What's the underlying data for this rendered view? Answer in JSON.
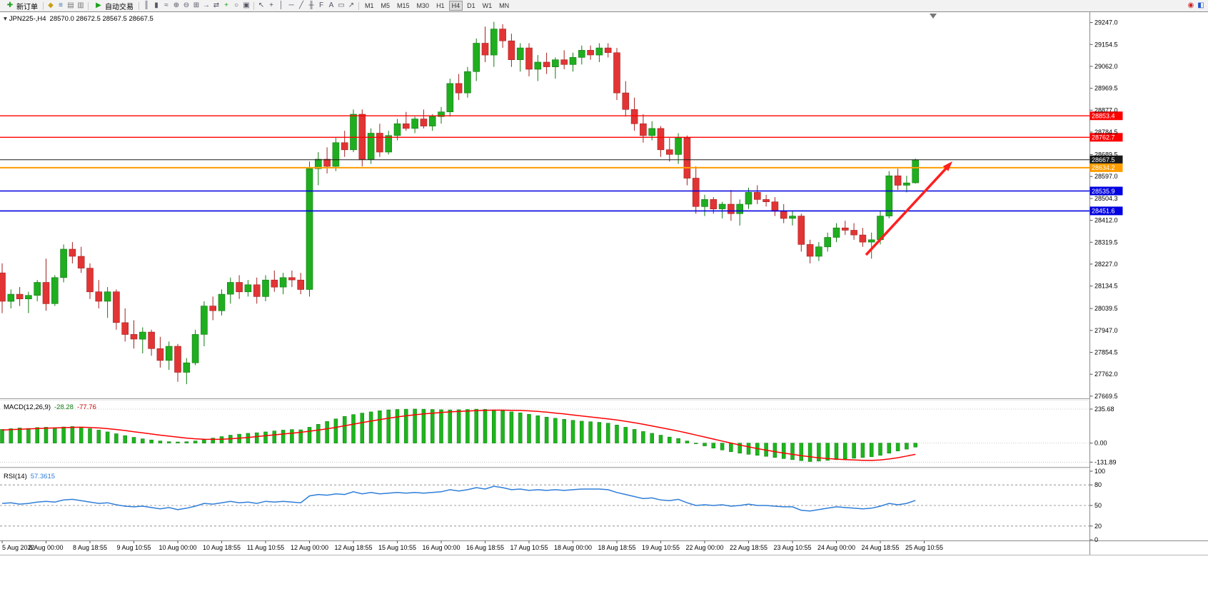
{
  "toolbar": {
    "new_order": "新订单",
    "auto_trading": "自动交易",
    "icons_left": [
      {
        "name": "profiles-icon",
        "glyph": "◆",
        "color": "#c99d12"
      },
      {
        "name": "market-watch-icon",
        "glyph": "≡",
        "color": "#3a6ea5"
      },
      {
        "name": "navigator-icon",
        "glyph": "▤",
        "color": "#777777"
      },
      {
        "name": "terminal-icon",
        "glyph": "▥",
        "color": "#777777"
      }
    ],
    "chart_icons": [
      {
        "name": "bar-chart-icon",
        "glyph": "║"
      },
      {
        "name": "candlestick-chart-icon",
        "glyph": "▮"
      },
      {
        "name": "line-chart-icon",
        "glyph": "≈"
      },
      {
        "name": "zoom-in-icon",
        "glyph": "⊕"
      },
      {
        "name": "zoom-out-icon",
        "glyph": "⊖"
      },
      {
        "name": "tile-windows-icon",
        "glyph": "⊞"
      },
      {
        "name": "auto-scroll-icon",
        "glyph": "→"
      },
      {
        "name": "chart-shift-icon",
        "glyph": "⇄"
      },
      {
        "name": "indicators-icon",
        "glyph": "+",
        "color": "#18a018"
      },
      {
        "name": "periods-icon",
        "glyph": "○"
      },
      {
        "name": "templates-icon",
        "glyph": "▣"
      }
    ],
    "draw_icons": [
      {
        "name": "cursor-icon",
        "glyph": "↖"
      },
      {
        "name": "crosshair-icon",
        "glyph": "+"
      },
      {
        "name": "vertical-line-icon",
        "glyph": "│"
      },
      {
        "name": "horizontal-line-icon",
        "glyph": "─"
      },
      {
        "name": "trendline-icon",
        "glyph": "╱"
      },
      {
        "name": "channel-icon",
        "glyph": "╫"
      },
      {
        "name": "fibonacci-icon",
        "glyph": "F"
      },
      {
        "name": "text-icon",
        "glyph": "A"
      },
      {
        "name": "label-icon",
        "glyph": "▭"
      },
      {
        "name": "arrows-icon",
        "glyph": "↗"
      }
    ],
    "timeframes": [
      "M1",
      "M5",
      "M15",
      "M30",
      "H1",
      "H4",
      "D1",
      "W1",
      "MN"
    ],
    "active_timeframe": "H4",
    "right_icons": [
      {
        "name": "community-icon",
        "glyph": "◉",
        "color": "#cc2222"
      },
      {
        "name": "account-icon",
        "glyph": "◧",
        "color": "#2255cc"
      }
    ]
  },
  "chart": {
    "symbol_label": "JPN225-,H4",
    "ohlc_label": "28570.0 28672.5 28567.5 28667.5",
    "price_axis_labels": [
      29247.0,
      29154.5,
      29062.0,
      28969.5,
      28877.0,
      28784.5,
      28689.5,
      28597.0,
      28504.3,
      28412.0,
      28319.5,
      28227.0,
      28134.5,
      28039.5,
      27947.0,
      27854.5,
      27762.0,
      27669.5
    ],
    "levels": [
      {
        "price": 28853.4,
        "label": "28853.4",
        "color": "#ff0000",
        "width": 1.3,
        "kind": "resistance"
      },
      {
        "price": 28762.7,
        "label": "28762.7",
        "color": "#ff0000",
        "width": 1.3,
        "kind": "resistance"
      },
      {
        "price": 28667.5,
        "label": "28667.5",
        "color": "#1a1a1a",
        "width": 1,
        "kind": "current-price"
      },
      {
        "price": 28634.2,
        "label": "28634.2",
        "color": "#ff9d00",
        "width": 2,
        "kind": "pivot"
      },
      {
        "price": 28535.9,
        "label": "28535.9",
        "color": "#0000e0",
        "width": 1.6,
        "kind": "support"
      },
      {
        "price": 28451.6,
        "label": "28451.6",
        "color": "#0000e0",
        "width": 1.6,
        "kind": "support"
      }
    ],
    "time_axis_labels": [
      "5 Aug 2022",
      "8 Aug 00:00",
      "8 Aug 18:55",
      "9 Aug 10:55",
      "10 Aug 00:00",
      "10 Aug 18:55",
      "11 Aug 10:55",
      "12 Aug 00:00",
      "12 Aug 18:55",
      "15 Aug 10:55",
      "16 Aug 00:00",
      "16 Aug 18:55",
      "17 Aug 10:55",
      "18 Aug 00:00",
      "18 Aug 18:55",
      "19 Aug 10:55",
      "22 Aug 00:00",
      "22 Aug 18:55",
      "23 Aug 10:55",
      "24 Aug 00:00",
      "24 Aug 18:55",
      "25 Aug 10:55"
    ]
  },
  "macd": {
    "label": "MACD(12,26,9)",
    "value_main": "-28.28",
    "value_signal": "-77.76",
    "axis": [
      "235.68",
      "0.00",
      "-131.89"
    ]
  },
  "rsi": {
    "label": "RSI(14)",
    "value_label": "57.3615",
    "axis": [
      "100",
      "80",
      "50",
      "20",
      "0"
    ],
    "levels": [
      80,
      50,
      20
    ]
  },
  "chart_data": {
    "type": "candlestick",
    "symbol": "JPN225-",
    "timeframe": "H4",
    "last_ohlc": {
      "open": 28570.0,
      "high": 28672.5,
      "low": 28567.5,
      "close": 28667.5
    },
    "price_range": [
      27660,
      29270
    ],
    "horizontal_levels": [
      28853.4,
      28762.7,
      28667.5,
      28634.2,
      28535.9,
      28451.6
    ],
    "annotations": [
      {
        "type": "arrow",
        "direction": "up",
        "color": "#ff1f1f",
        "note": "bullish breakout arrow toward 28667.5"
      }
    ],
    "candles_ohlc": [
      [
        28190,
        28230,
        28020,
        28070
      ],
      [
        28070,
        28120,
        28040,
        28100
      ],
      [
        28100,
        28130,
        28050,
        28080
      ],
      [
        28080,
        28110,
        28020,
        28095
      ],
      [
        28095,
        28160,
        28070,
        28150
      ],
      [
        28150,
        28250,
        28030,
        28060
      ],
      [
        28060,
        28180,
        28050,
        28170
      ],
      [
        28170,
        28310,
        28150,
        28290
      ],
      [
        28290,
        28320,
        28230,
        28260
      ],
      [
        28260,
        28300,
        28190,
        28210
      ],
      [
        28210,
        28230,
        28080,
        28110
      ],
      [
        28110,
        28160,
        28040,
        28070
      ],
      [
        28070,
        28130,
        28000,
        28110
      ],
      [
        28110,
        28120,
        27950,
        27980
      ],
      [
        27980,
        28040,
        27900,
        27930
      ],
      [
        27930,
        27990,
        27870,
        27910
      ],
      [
        27910,
        27960,
        27850,
        27940
      ],
      [
        27940,
        27950,
        27840,
        27870
      ],
      [
        27870,
        27920,
        27790,
        27820
      ],
      [
        27820,
        27900,
        27780,
        27880
      ],
      [
        27880,
        27890,
        27730,
        27770
      ],
      [
        27770,
        27830,
        27720,
        27810
      ],
      [
        27810,
        27950,
        27800,
        27930
      ],
      [
        27930,
        28070,
        27880,
        28050
      ],
      [
        28050,
        28090,
        27990,
        28030
      ],
      [
        28030,
        28120,
        28010,
        28100
      ],
      [
        28100,
        28170,
        28060,
        28150
      ],
      [
        28150,
        28180,
        28080,
        28110
      ],
      [
        28110,
        28160,
        28090,
        28140
      ],
      [
        28140,
        28170,
        28060,
        28090
      ],
      [
        28090,
        28180,
        28070,
        28160
      ],
      [
        28160,
        28200,
        28110,
        28130
      ],
      [
        28130,
        28190,
        28100,
        28170
      ],
      [
        28170,
        28200,
        28130,
        28160
      ],
      [
        28160,
        28190,
        28100,
        28120
      ],
      [
        28120,
        28660,
        28090,
        28630
      ],
      [
        28630,
        28700,
        28560,
        28670
      ],
      [
        28670,
        28720,
        28610,
        28640
      ],
      [
        28640,
        28760,
        28620,
        28740
      ],
      [
        28740,
        28790,
        28680,
        28710
      ],
      [
        28710,
        28880,
        28700,
        28860
      ],
      [
        28860,
        28880,
        28640,
        28670
      ],
      [
        28670,
        28800,
        28650,
        28780
      ],
      [
        28780,
        28820,
        28680,
        28700
      ],
      [
        28700,
        28790,
        28690,
        28770
      ],
      [
        28770,
        28840,
        28750,
        28820
      ],
      [
        28820,
        28870,
        28790,
        28800
      ],
      [
        28800,
        28850,
        28780,
        28840
      ],
      [
        28840,
        28880,
        28800,
        28810
      ],
      [
        28810,
        28860,
        28790,
        28850
      ],
      [
        28850,
        28890,
        28820,
        28870
      ],
      [
        28870,
        29010,
        28850,
        28990
      ],
      [
        28990,
        29030,
        28920,
        28950
      ],
      [
        28950,
        29060,
        28930,
        29040
      ],
      [
        29040,
        29180,
        29000,
        29160
      ],
      [
        29160,
        29230,
        29080,
        29110
      ],
      [
        29110,
        29250,
        29060,
        29220
      ],
      [
        29220,
        29240,
        29140,
        29170
      ],
      [
        29170,
        29200,
        29060,
        29090
      ],
      [
        29090,
        29160,
        29040,
        29140
      ],
      [
        29140,
        29160,
        29020,
        29050
      ],
      [
        29050,
        29110,
        29000,
        29080
      ],
      [
        29080,
        29120,
        29030,
        29060
      ],
      [
        29060,
        29100,
        29010,
        29090
      ],
      [
        29090,
        29130,
        29050,
        29070
      ],
      [
        29070,
        29120,
        29040,
        29100
      ],
      [
        29100,
        29150,
        29070,
        29130
      ],
      [
        29130,
        29150,
        29090,
        29110
      ],
      [
        29110,
        29160,
        29080,
        29140
      ],
      [
        29140,
        29160,
        29100,
        29120
      ],
      [
        29120,
        29140,
        28920,
        28950
      ],
      [
        28950,
        29000,
        28850,
        28880
      ],
      [
        28880,
        28930,
        28790,
        28820
      ],
      [
        28820,
        28860,
        28740,
        28770
      ],
      [
        28770,
        28830,
        28750,
        28800
      ],
      [
        28800,
        28810,
        28680,
        28710
      ],
      [
        28710,
        28760,
        28660,
        28690
      ],
      [
        28690,
        28780,
        28650,
        28760
      ],
      [
        28760,
        28770,
        28560,
        28590
      ],
      [
        28590,
        28640,
        28440,
        28470
      ],
      [
        28470,
        28520,
        28430,
        28500
      ],
      [
        28500,
        28510,
        28440,
        28460
      ],
      [
        28460,
        28490,
        28420,
        28480
      ],
      [
        28480,
        28540,
        28410,
        28440
      ],
      [
        28440,
        28500,
        28390,
        28480
      ],
      [
        28480,
        28550,
        28460,
        28530
      ],
      [
        28530,
        28560,
        28480,
        28500
      ],
      [
        28500,
        28520,
        28470,
        28490
      ],
      [
        28490,
        28510,
        28430,
        28450
      ],
      [
        28450,
        28480,
        28400,
        28420
      ],
      [
        28420,
        28450,
        28390,
        28430
      ],
      [
        28430,
        28440,
        28280,
        28310
      ],
      [
        28310,
        28330,
        28230,
        28260
      ],
      [
        28260,
        28320,
        28240,
        28300
      ],
      [
        28300,
        28360,
        28280,
        28340
      ],
      [
        28340,
        28400,
        28320,
        28380
      ],
      [
        28380,
        28410,
        28350,
        28370
      ],
      [
        28370,
        28400,
        28330,
        28350
      ],
      [
        28350,
        28380,
        28300,
        28320
      ],
      [
        28320,
        28360,
        28250,
        28330
      ],
      [
        28330,
        28450,
        28310,
        28430
      ],
      [
        28430,
        28620,
        28420,
        28600
      ],
      [
        28600,
        28630,
        28540,
        28560
      ],
      [
        28560,
        28600,
        28530,
        28570
      ],
      [
        28570,
        28672.5,
        28567.5,
        28667.5
      ]
    ],
    "indicators": {
      "macd": {
        "label": "MACD(12,26,9)",
        "range": [
          -131.89,
          235.68
        ],
        "histogram": [
          95,
          100,
          105,
          102,
          108,
          110,
          104,
          112,
          115,
          108,
          100,
          90,
          78,
          65,
          52,
          40,
          30,
          22,
          15,
          10,
          8,
          10,
          15,
          25,
          35,
          45,
          55,
          62,
          68,
          72,
          78,
          84,
          90,
          94,
          92,
          110,
          130,
          150,
          168,
          185,
          198,
          208,
          216,
          224,
          230,
          233,
          235,
          236,
          235,
          233,
          231,
          230,
          231,
          233,
          235,
          234,
          230,
          224,
          216,
          210,
          200,
          190,
          180,
          172,
          165,
          158,
          152,
          148,
          144,
          138,
          125,
          110,
          95,
          80,
          68,
          55,
          42,
          32,
          15,
          -5,
          -20,
          -35,
          -48,
          -60,
          -70,
          -78,
          -85,
          -92,
          -100,
          -108,
          -115,
          -122,
          -128,
          -125,
          -120,
          -115,
          -110,
          -105,
          -100,
          -95,
          -85,
          -70,
          -55,
          -42,
          -28.28
        ],
        "signal": [
          90,
          93,
          96,
          98,
          101,
          103,
          105,
          107,
          109,
          110,
          108,
          105,
          100,
          94,
          87,
          79,
          71,
          63,
          55,
          48,
          41,
          35,
          30,
          27,
          26,
          27,
          30,
          34,
          39,
          45,
          51,
          57,
          63,
          69,
          75,
          82,
          90,
          99,
          109,
          120,
          131,
          142,
          153,
          163,
          172,
          181,
          189,
          196,
          202,
          207,
          212,
          216,
          219,
          222,
          225,
          227,
          228,
          228,
          227,
          226,
          223,
          219,
          214,
          208,
          202,
          195,
          188,
          181,
          174,
          168,
          160,
          151,
          141,
          130,
          119,
          107,
          95,
          83,
          70,
          56,
          42,
          28,
          14,
          0,
          -13,
          -26,
          -38,
          -49,
          -59,
          -69,
          -78,
          -87,
          -95,
          -102,
          -107,
          -111,
          -114,
          -117,
          -119,
          -120,
          -117,
          -110,
          -101,
          -90,
          -77.76
        ]
      },
      "rsi": {
        "label": "RSI(14)",
        "range": [
          0,
          100
        ],
        "levels": [
          80,
          50,
          20
        ],
        "values": [
          53,
          54,
          52,
          53,
          55,
          56,
          55,
          58,
          59,
          57,
          55,
          53,
          54,
          51,
          49,
          48,
          49,
          47,
          45,
          47,
          44,
          46,
          49,
          53,
          52,
          54,
          56,
          54,
          55,
          53,
          56,
          55,
          56,
          55,
          54,
          64,
          66,
          65,
          67,
          66,
          70,
          67,
          69,
          67,
          68,
          69,
          68,
          69,
          68,
          69,
          70,
          73,
          71,
          73,
          76,
          74,
          78,
          76,
          73,
          74,
          72,
          73,
          72,
          73,
          72,
          73,
          74,
          74,
          74,
          73,
          69,
          66,
          63,
          60,
          61,
          58,
          57,
          59,
          54,
          50,
          51,
          50,
          51,
          49,
          50,
          52,
          50,
          50,
          49,
          48,
          48,
          43,
          42,
          44,
          46,
          48,
          47,
          46,
          45,
          46,
          49,
          53,
          51,
          53,
          57.36
        ]
      }
    }
  }
}
